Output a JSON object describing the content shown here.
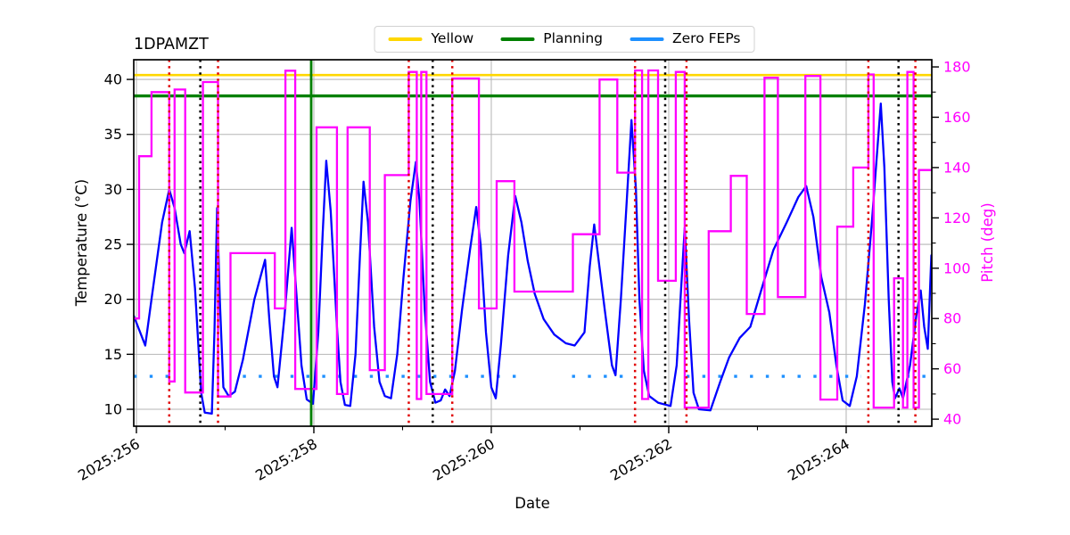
{
  "chart_data": {
    "type": "line",
    "title": "1DPAMZT",
    "xlabel": "Date",
    "ylabel_left": "Temperature (°C)",
    "ylabel_right": "Pitch (deg)",
    "axes": {
      "xlim": [
        255.97,
        264.965
      ],
      "ylim_left": [
        8.46,
        41.79
      ],
      "ylim_right": [
        37.2,
        182.85
      ],
      "x_major_ticks": [
        {
          "value": 256,
          "label": "2025:256"
        },
        {
          "value": 258,
          "label": "2025:258"
        },
        {
          "value": 260,
          "label": "2025:260"
        },
        {
          "value": 262,
          "label": "2025:262"
        },
        {
          "value": 264,
          "label": "2025:264"
        }
      ],
      "x_minor_ticks": [
        257,
        259,
        261,
        263
      ],
      "y_ticks_left": [
        10,
        15,
        20,
        25,
        30,
        35,
        40
      ],
      "y_ticks_right": [
        40,
        60,
        80,
        100,
        120,
        140,
        160,
        180
      ],
      "y_minor_ticks_right": [
        50,
        70,
        90,
        110,
        130,
        150,
        170
      ],
      "grid": true,
      "legend_position": "upper center"
    },
    "legend": {
      "items": [
        {
          "label": "Yellow",
          "color": "#ffd700"
        },
        {
          "label": "Planning",
          "color": "#008000"
        },
        {
          "label": "Zero FEPs",
          "color": "#1e90ff"
        }
      ]
    },
    "limit_lines": {
      "yellow_limit_c": 40.4,
      "planning_limit_c": 38.5
    },
    "zero_feps": {
      "temp_c": 13.0,
      "day_segments": [
        [
          255.97,
          256.42
        ],
        [
          257.2,
          260.28
        ],
        [
          260.91,
          261.6
        ],
        [
          262.2,
          264.17
        ],
        [
          264.68,
          264.95
        ]
      ]
    },
    "event_vlines": {
      "red_dotted_days": [
        256.37,
        256.92,
        259.07,
        259.56,
        261.62,
        262.2,
        264.25,
        264.78
      ],
      "black_dotted_days": [
        256.72,
        259.34,
        261.96,
        264.59
      ],
      "green_solid_days": [
        257.97
      ]
    },
    "series": {
      "temperature": {
        "name": "1DPAMZT",
        "units": "C",
        "color": "#0000ff",
        "points": [
          [
            255.97,
            18.5
          ],
          [
            256.1,
            15.8
          ],
          [
            256.17,
            20.0
          ],
          [
            256.29,
            27.0
          ],
          [
            256.37,
            30.0
          ],
          [
            256.43,
            28.3
          ],
          [
            256.5,
            25.0
          ],
          [
            256.54,
            24.2
          ],
          [
            256.6,
            26.2
          ],
          [
            256.66,
            21.0
          ],
          [
            256.73,
            11.5
          ],
          [
            256.77,
            9.7
          ],
          [
            256.85,
            9.6
          ],
          [
            256.88,
            17.0
          ],
          [
            256.91,
            28.3
          ],
          [
            256.94,
            20.0
          ],
          [
            256.98,
            12.0
          ],
          [
            257.04,
            11.2
          ],
          [
            257.11,
            11.6
          ],
          [
            257.2,
            14.5
          ],
          [
            257.33,
            20.0
          ],
          [
            257.45,
            23.6
          ],
          [
            257.5,
            18.0
          ],
          [
            257.55,
            13.0
          ],
          [
            257.59,
            12.0
          ],
          [
            257.67,
            18.5
          ],
          [
            257.75,
            26.5
          ],
          [
            257.79,
            22.0
          ],
          [
            257.86,
            14.0
          ],
          [
            257.92,
            10.9
          ],
          [
            257.99,
            10.5
          ],
          [
            258.05,
            17.0
          ],
          [
            258.1,
            26.0
          ],
          [
            258.14,
            32.6
          ],
          [
            258.19,
            28.0
          ],
          [
            258.26,
            17.5
          ],
          [
            258.3,
            12.5
          ],
          [
            258.35,
            10.4
          ],
          [
            258.41,
            10.3
          ],
          [
            258.47,
            15.0
          ],
          [
            258.52,
            24.0
          ],
          [
            258.56,
            30.7
          ],
          [
            258.61,
            27.0
          ],
          [
            258.68,
            17.5
          ],
          [
            258.74,
            12.5
          ],
          [
            258.8,
            11.2
          ],
          [
            258.87,
            11.0
          ],
          [
            258.94,
            15.0
          ],
          [
            259.01,
            22.0
          ],
          [
            259.09,
            29.0
          ],
          [
            259.15,
            32.5
          ],
          [
            259.19,
            29.0
          ],
          [
            259.25,
            19.0
          ],
          [
            259.31,
            12.5
          ],
          [
            259.37,
            10.6
          ],
          [
            259.43,
            10.8
          ],
          [
            259.48,
            11.8
          ],
          [
            259.53,
            11.2
          ],
          [
            259.59,
            13.5
          ],
          [
            259.67,
            19.0
          ],
          [
            259.76,
            24.5
          ],
          [
            259.83,
            28.4
          ],
          [
            259.88,
            25.0
          ],
          [
            259.94,
            17.0
          ],
          [
            260.0,
            12.0
          ],
          [
            260.05,
            11.0
          ],
          [
            260.11,
            16.0
          ],
          [
            260.19,
            24.0
          ],
          [
            260.27,
            29.4
          ],
          [
            260.34,
            27.0
          ],
          [
            260.41,
            23.5
          ],
          [
            260.49,
            20.5
          ],
          [
            260.59,
            18.2
          ],
          [
            260.71,
            16.8
          ],
          [
            260.84,
            16.0
          ],
          [
            260.94,
            15.8
          ],
          [
            261.05,
            17.0
          ],
          [
            261.11,
            23.0
          ],
          [
            261.16,
            26.8
          ],
          [
            261.28,
            19.0
          ],
          [
            261.36,
            14.0
          ],
          [
            261.4,
            13.1
          ],
          [
            261.46,
            20.0
          ],
          [
            261.52,
            28.0
          ],
          [
            261.58,
            36.3
          ],
          [
            261.63,
            30.0
          ],
          [
            261.67,
            20.0
          ],
          [
            261.72,
            13.5
          ],
          [
            261.78,
            11.2
          ],
          [
            261.88,
            10.6
          ],
          [
            262.02,
            10.3
          ],
          [
            262.09,
            14.0
          ],
          [
            262.14,
            21.0
          ],
          [
            262.18,
            26.5
          ],
          [
            262.23,
            18.0
          ],
          [
            262.28,
            11.5
          ],
          [
            262.34,
            10.0
          ],
          [
            262.47,
            9.9
          ],
          [
            262.58,
            12.5
          ],
          [
            262.68,
            14.7
          ],
          [
            262.8,
            16.5
          ],
          [
            262.92,
            17.5
          ],
          [
            263.03,
            20.5
          ],
          [
            263.18,
            24.5
          ],
          [
            263.33,
            27.0
          ],
          [
            263.46,
            29.3
          ],
          [
            263.55,
            30.3
          ],
          [
            263.63,
            27.5
          ],
          [
            263.72,
            22.0
          ],
          [
            263.81,
            18.8
          ],
          [
            263.89,
            14.0
          ],
          [
            263.96,
            10.8
          ],
          [
            264.04,
            10.3
          ],
          [
            264.12,
            13.0
          ],
          [
            264.21,
            19.5
          ],
          [
            264.29,
            27.0
          ],
          [
            264.35,
            33.5
          ],
          [
            264.39,
            37.8
          ],
          [
            264.43,
            32.0
          ],
          [
            264.48,
            20.0
          ],
          [
            264.52,
            12.5
          ],
          [
            264.55,
            11.0
          ],
          [
            264.6,
            11.9
          ],
          [
            264.64,
            11.0
          ],
          [
            264.72,
            14.0
          ],
          [
            264.79,
            18.5
          ],
          [
            264.84,
            20.8
          ],
          [
            264.88,
            17.5
          ],
          [
            264.92,
            15.5
          ],
          [
            264.96,
            24.0
          ]
        ]
      },
      "pitch": {
        "name": "Pitch",
        "units": "deg",
        "color": "#ff00ff",
        "style": "steps-post",
        "end_day": 264.965,
        "points": [
          [
            255.97,
            80
          ],
          [
            256.03,
            144.5
          ],
          [
            256.17,
            170
          ],
          [
            256.37,
            55
          ],
          [
            256.43,
            171
          ],
          [
            256.55,
            50.6
          ],
          [
            256.75,
            174
          ],
          [
            256.92,
            49
          ],
          [
            257.06,
            106
          ],
          [
            257.56,
            84
          ],
          [
            257.68,
            178.5
          ],
          [
            257.79,
            52
          ],
          [
            258.03,
            156
          ],
          [
            258.26,
            50
          ],
          [
            258.38,
            156
          ],
          [
            258.63,
            59.5
          ],
          [
            258.8,
            137
          ],
          [
            259.07,
            178
          ],
          [
            259.16,
            48
          ],
          [
            259.21,
            178
          ],
          [
            259.27,
            50
          ],
          [
            259.56,
            175.4
          ],
          [
            259.86,
            84
          ],
          [
            260.06,
            134.6
          ],
          [
            260.26,
            90.7
          ],
          [
            260.92,
            113.5
          ],
          [
            261.22,
            175
          ],
          [
            261.42,
            138
          ],
          [
            261.62,
            178.6
          ],
          [
            261.7,
            48
          ],
          [
            261.77,
            178.6
          ],
          [
            261.88,
            95
          ],
          [
            262.08,
            178
          ],
          [
            262.18,
            44.6
          ],
          [
            262.45,
            114.7
          ],
          [
            262.7,
            136.7
          ],
          [
            262.88,
            81.8
          ],
          [
            263.08,
            175.7
          ],
          [
            263.23,
            88.5
          ],
          [
            263.54,
            176.4
          ],
          [
            263.71,
            47.8
          ],
          [
            263.9,
            116.5
          ],
          [
            264.08,
            140
          ],
          [
            264.25,
            177
          ],
          [
            264.31,
            44.6
          ],
          [
            264.54,
            96
          ],
          [
            264.64,
            44.6
          ],
          [
            264.69,
            178
          ],
          [
            264.76,
            44.6
          ],
          [
            264.82,
            139
          ]
        ]
      }
    },
    "colors": {
      "temperature_line": "#0000ff",
      "pitch_line": "#ff00ff",
      "yellow_limit": "#ffd700",
      "planning_limit": "#008000",
      "zero_feps": "#1e90ff",
      "red_vline": "#e00000",
      "black_vline": "#000000",
      "green_vline": "#008000",
      "grid": "#b6b6b6",
      "right_axis_text": "#ff00ff"
    }
  }
}
